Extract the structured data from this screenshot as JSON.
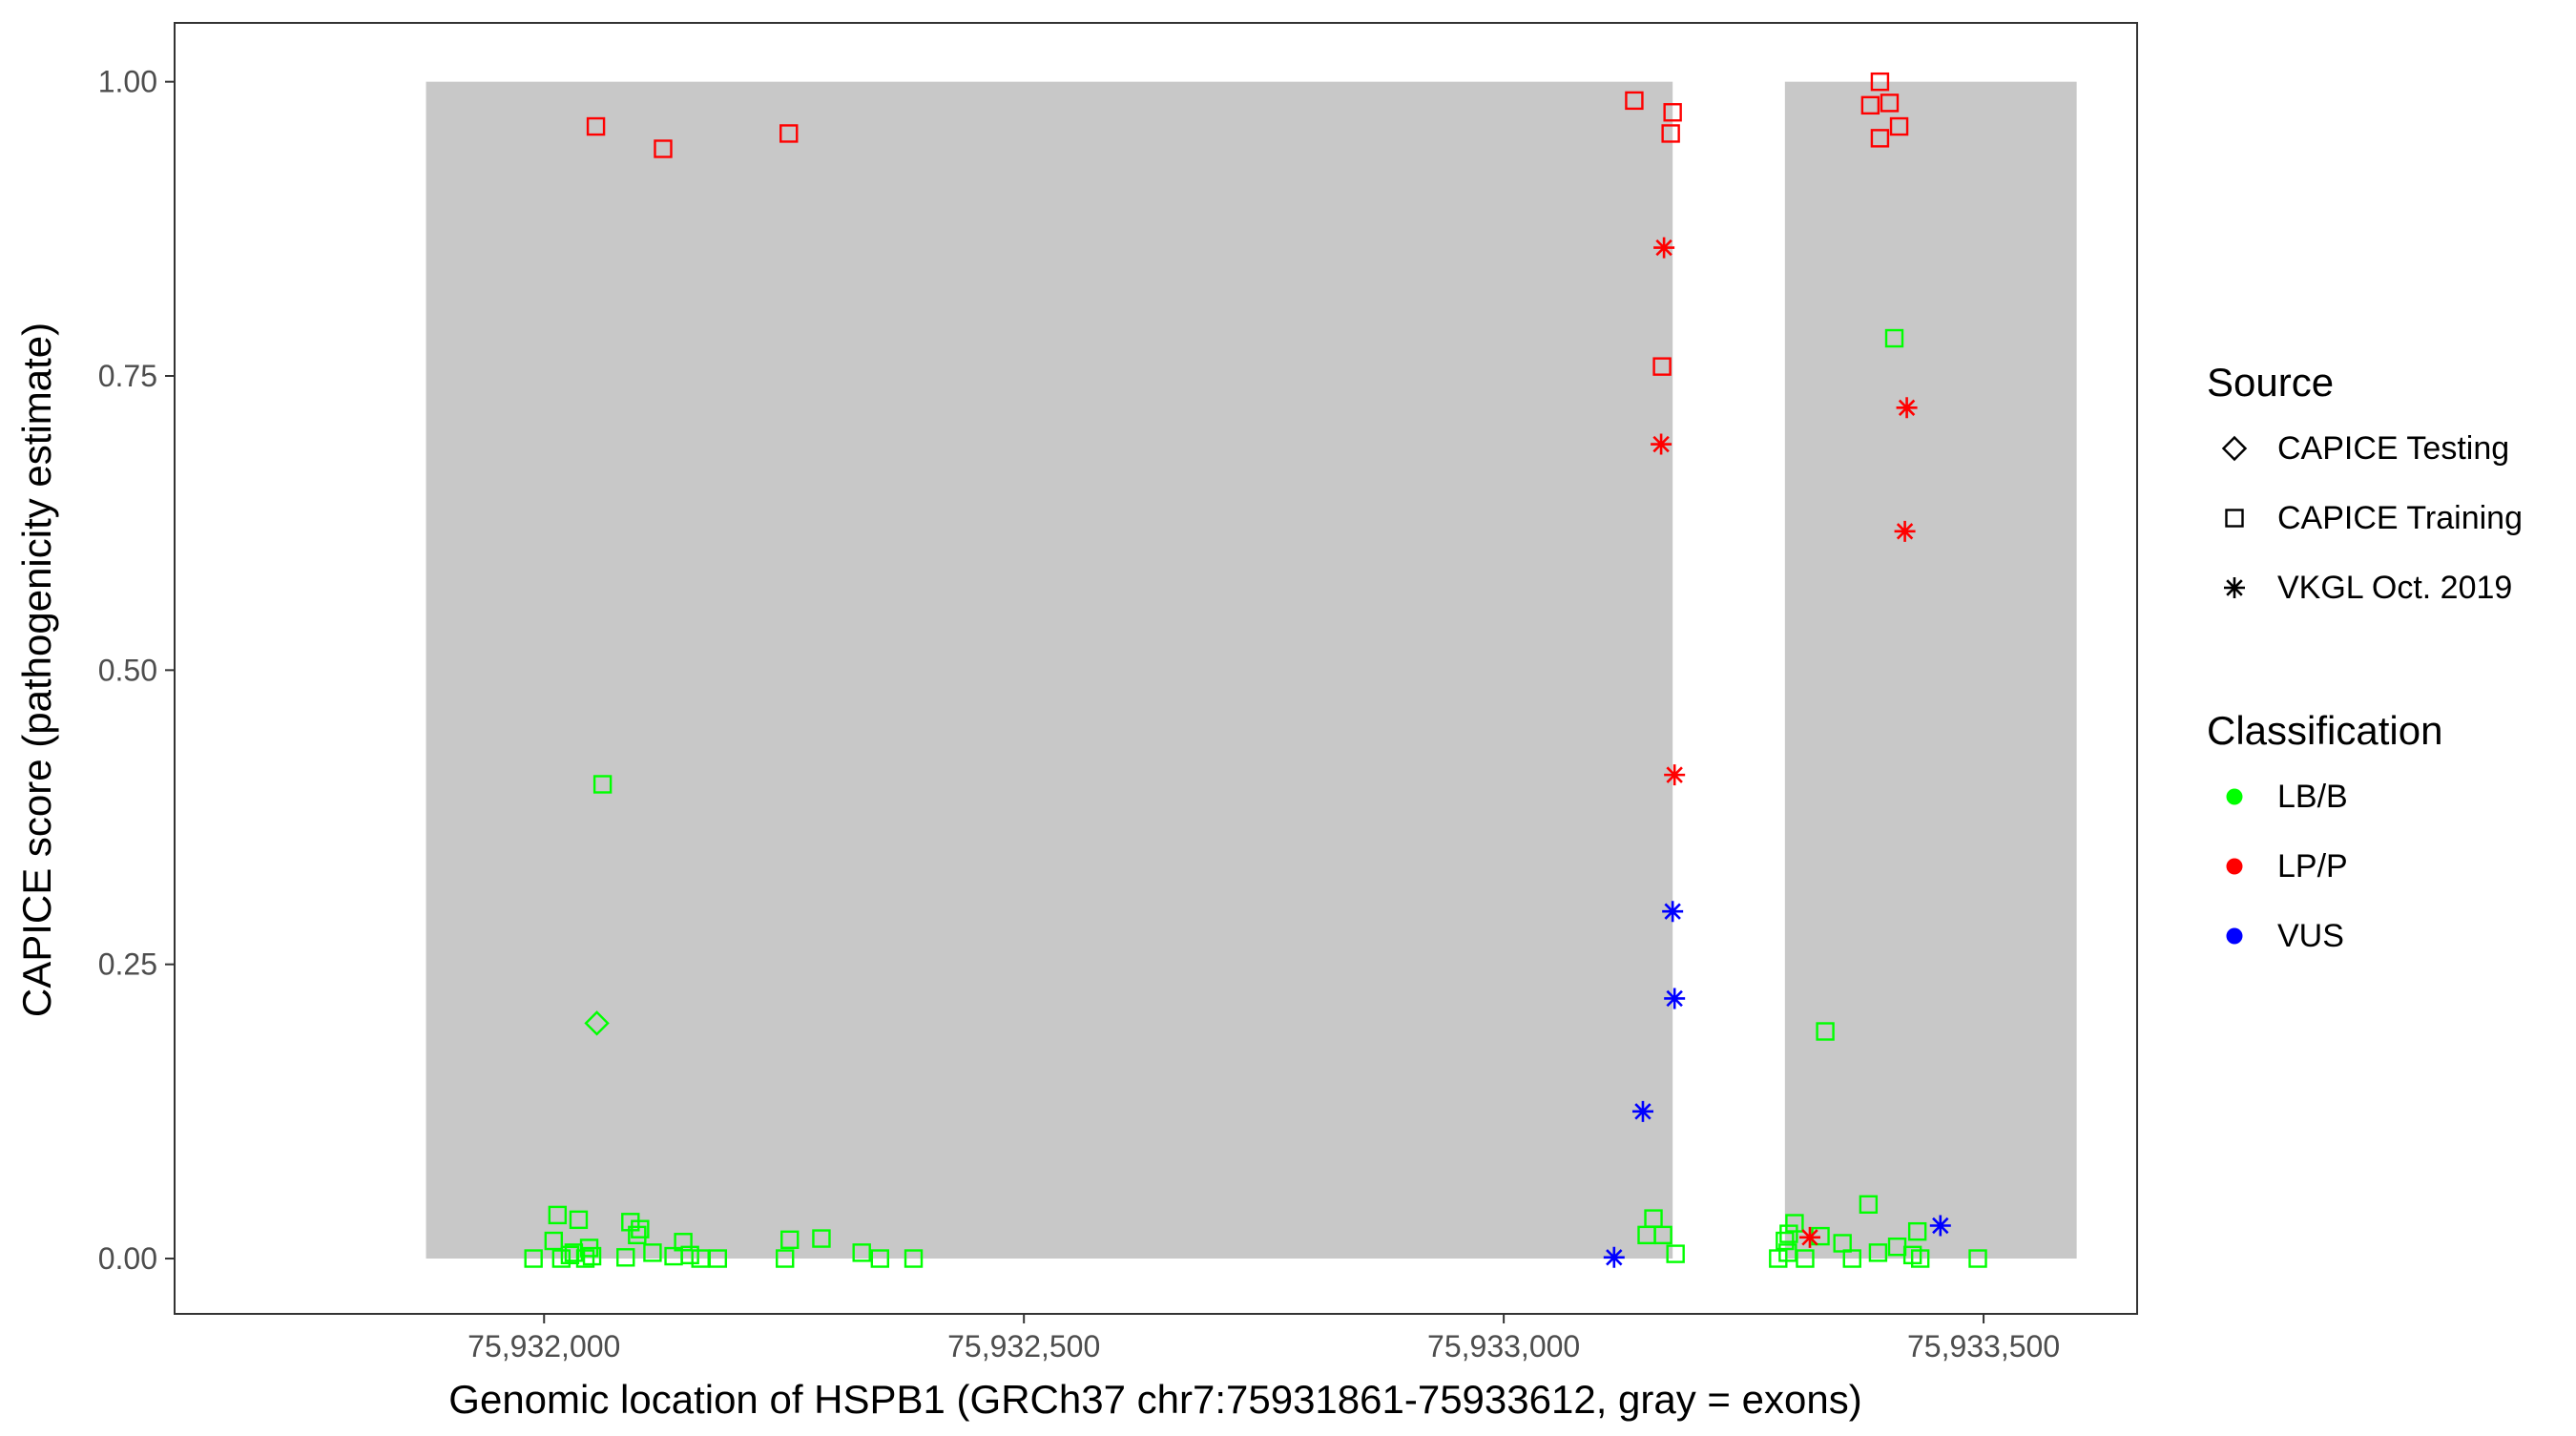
{
  "chart_data": {
    "type": "scatter",
    "title": "",
    "xlabel": "Genomic location of HSPB1 (GRCh37 chr7:75931861-75933612, gray = exons)",
    "ylabel": "CAPICE score (pathogenicity estimate)",
    "xlim": [
      75931615,
      75933660
    ],
    "ylim": [
      -0.047,
      1.05
    ],
    "x_ticks": [
      75932000,
      75932500,
      75933000,
      75933500
    ],
    "x_tick_labels": [
      "75,932,000",
      "75,932,500",
      "75,933,000",
      "75,933,500"
    ],
    "y_ticks": [
      0.0,
      0.25,
      0.5,
      0.75,
      1.0
    ],
    "y_tick_labels": [
      "0.00",
      "0.25",
      "0.50",
      "0.75",
      "1.00"
    ],
    "grid": false,
    "exons": [
      [
        75931877,
        75933176
      ],
      [
        75933293,
        75933597
      ]
    ],
    "exon_color": "#c8c8c8",
    "colors": {
      "LB/B": "#00ff00",
      "LP/P": "#ff0000",
      "VUS": "#0000ff"
    },
    "legend": {
      "placement": "right",
      "source_title": "Source",
      "source_items": [
        {
          "label": "CAPICE Testing",
          "shape": "diamond"
        },
        {
          "label": "CAPICE Training",
          "shape": "square"
        },
        {
          "label": "VKGL Oct. 2019",
          "shape": "star"
        }
      ],
      "class_title": "Classification",
      "class_items": [
        {
          "label": "LB/B",
          "key": "LB/B"
        },
        {
          "label": "LP/P",
          "key": "LP/P"
        },
        {
          "label": "VUS",
          "key": "VUS"
        }
      ]
    },
    "series": [
      {
        "source": "CAPICE Training",
        "classification": "LP/P",
        "points": [
          [
            75932054,
            0.962
          ],
          [
            75932124,
            0.943
          ],
          [
            75932255,
            0.956
          ],
          [
            75933136,
            0.984
          ],
          [
            75933176,
            0.974
          ],
          [
            75933174,
            0.956
          ],
          [
            75933165,
            0.758
          ],
          [
            75933382,
            0.98
          ],
          [
            75933392,
            1.0
          ],
          [
            75933402,
            0.982
          ],
          [
            75933412,
            0.962
          ],
          [
            75933392,
            0.952
          ]
        ]
      },
      {
        "source": "CAPICE Training",
        "classification": "LB/B",
        "points": [
          [
            75932061,
            0.403
          ],
          [
            75933407,
            0.782
          ],
          [
            75933335,
            0.193
          ],
          [
            75931989,
            0.0
          ],
          [
            75932018,
            0.0
          ],
          [
            75932027,
            0.003
          ],
          [
            75932043,
            0.0
          ],
          [
            75932031,
            0.005
          ],
          [
            75932050,
            0.002
          ],
          [
            75932014,
            0.037
          ],
          [
            75932010,
            0.015
          ],
          [
            75932036,
            0.033
          ],
          [
            75932047,
            0.009
          ],
          [
            75932090,
            0.031
          ],
          [
            75932097,
            0.02
          ],
          [
            75932100,
            0.025
          ],
          [
            75932113,
            0.005
          ],
          [
            75932085,
            0.001
          ],
          [
            75932135,
            0.002
          ],
          [
            75932145,
            0.014
          ],
          [
            75932152,
            0.003
          ],
          [
            75932163,
            0.0
          ],
          [
            75932181,
            0.0
          ],
          [
            75932251,
            0.0
          ],
          [
            75932256,
            0.016
          ],
          [
            75932289,
            0.017
          ],
          [
            75932331,
            0.005
          ],
          [
            75932350,
            0.0
          ],
          [
            75932385,
            0.0
          ],
          [
            75933149,
            0.02
          ],
          [
            75933156,
            0.034
          ],
          [
            75933166,
            0.02
          ],
          [
            75933179,
            0.004
          ],
          [
            75933286,
            0.0
          ],
          [
            75933293,
            0.015
          ],
          [
            75933297,
            0.021
          ],
          [
            75933303,
            0.03
          ],
          [
            75933296,
            0.005
          ],
          [
            75933314,
            0.0
          ],
          [
            75933330,
            0.019
          ],
          [
            75933353,
            0.013
          ],
          [
            75933363,
            0.0
          ],
          [
            75933380,
            0.046
          ],
          [
            75933390,
            0.005
          ],
          [
            75933410,
            0.01
          ],
          [
            75933431,
            0.023
          ],
          [
            75933426,
            0.003
          ],
          [
            75933434,
            0.0
          ],
          [
            75933494,
            0.0
          ]
        ]
      },
      {
        "source": "CAPICE Testing",
        "classification": "LB/B",
        "points": [
          [
            75932055,
            0.2
          ]
        ]
      },
      {
        "source": "VKGL Oct. 2019",
        "classification": "LP/P",
        "points": [
          [
            75933167,
            0.859
          ],
          [
            75933164,
            0.692
          ],
          [
            75933178,
            0.411
          ],
          [
            75933420,
            0.723
          ],
          [
            75933418,
            0.618
          ],
          [
            75933319,
            0.018
          ]
        ]
      },
      {
        "source": "VKGL Oct. 2019",
        "classification": "VUS",
        "points": [
          [
            75933176,
            0.295
          ],
          [
            75933178,
            0.221
          ],
          [
            75933145,
            0.125
          ],
          [
            75933115,
            0.001
          ],
          [
            75933455,
            0.028
          ]
        ]
      }
    ]
  }
}
